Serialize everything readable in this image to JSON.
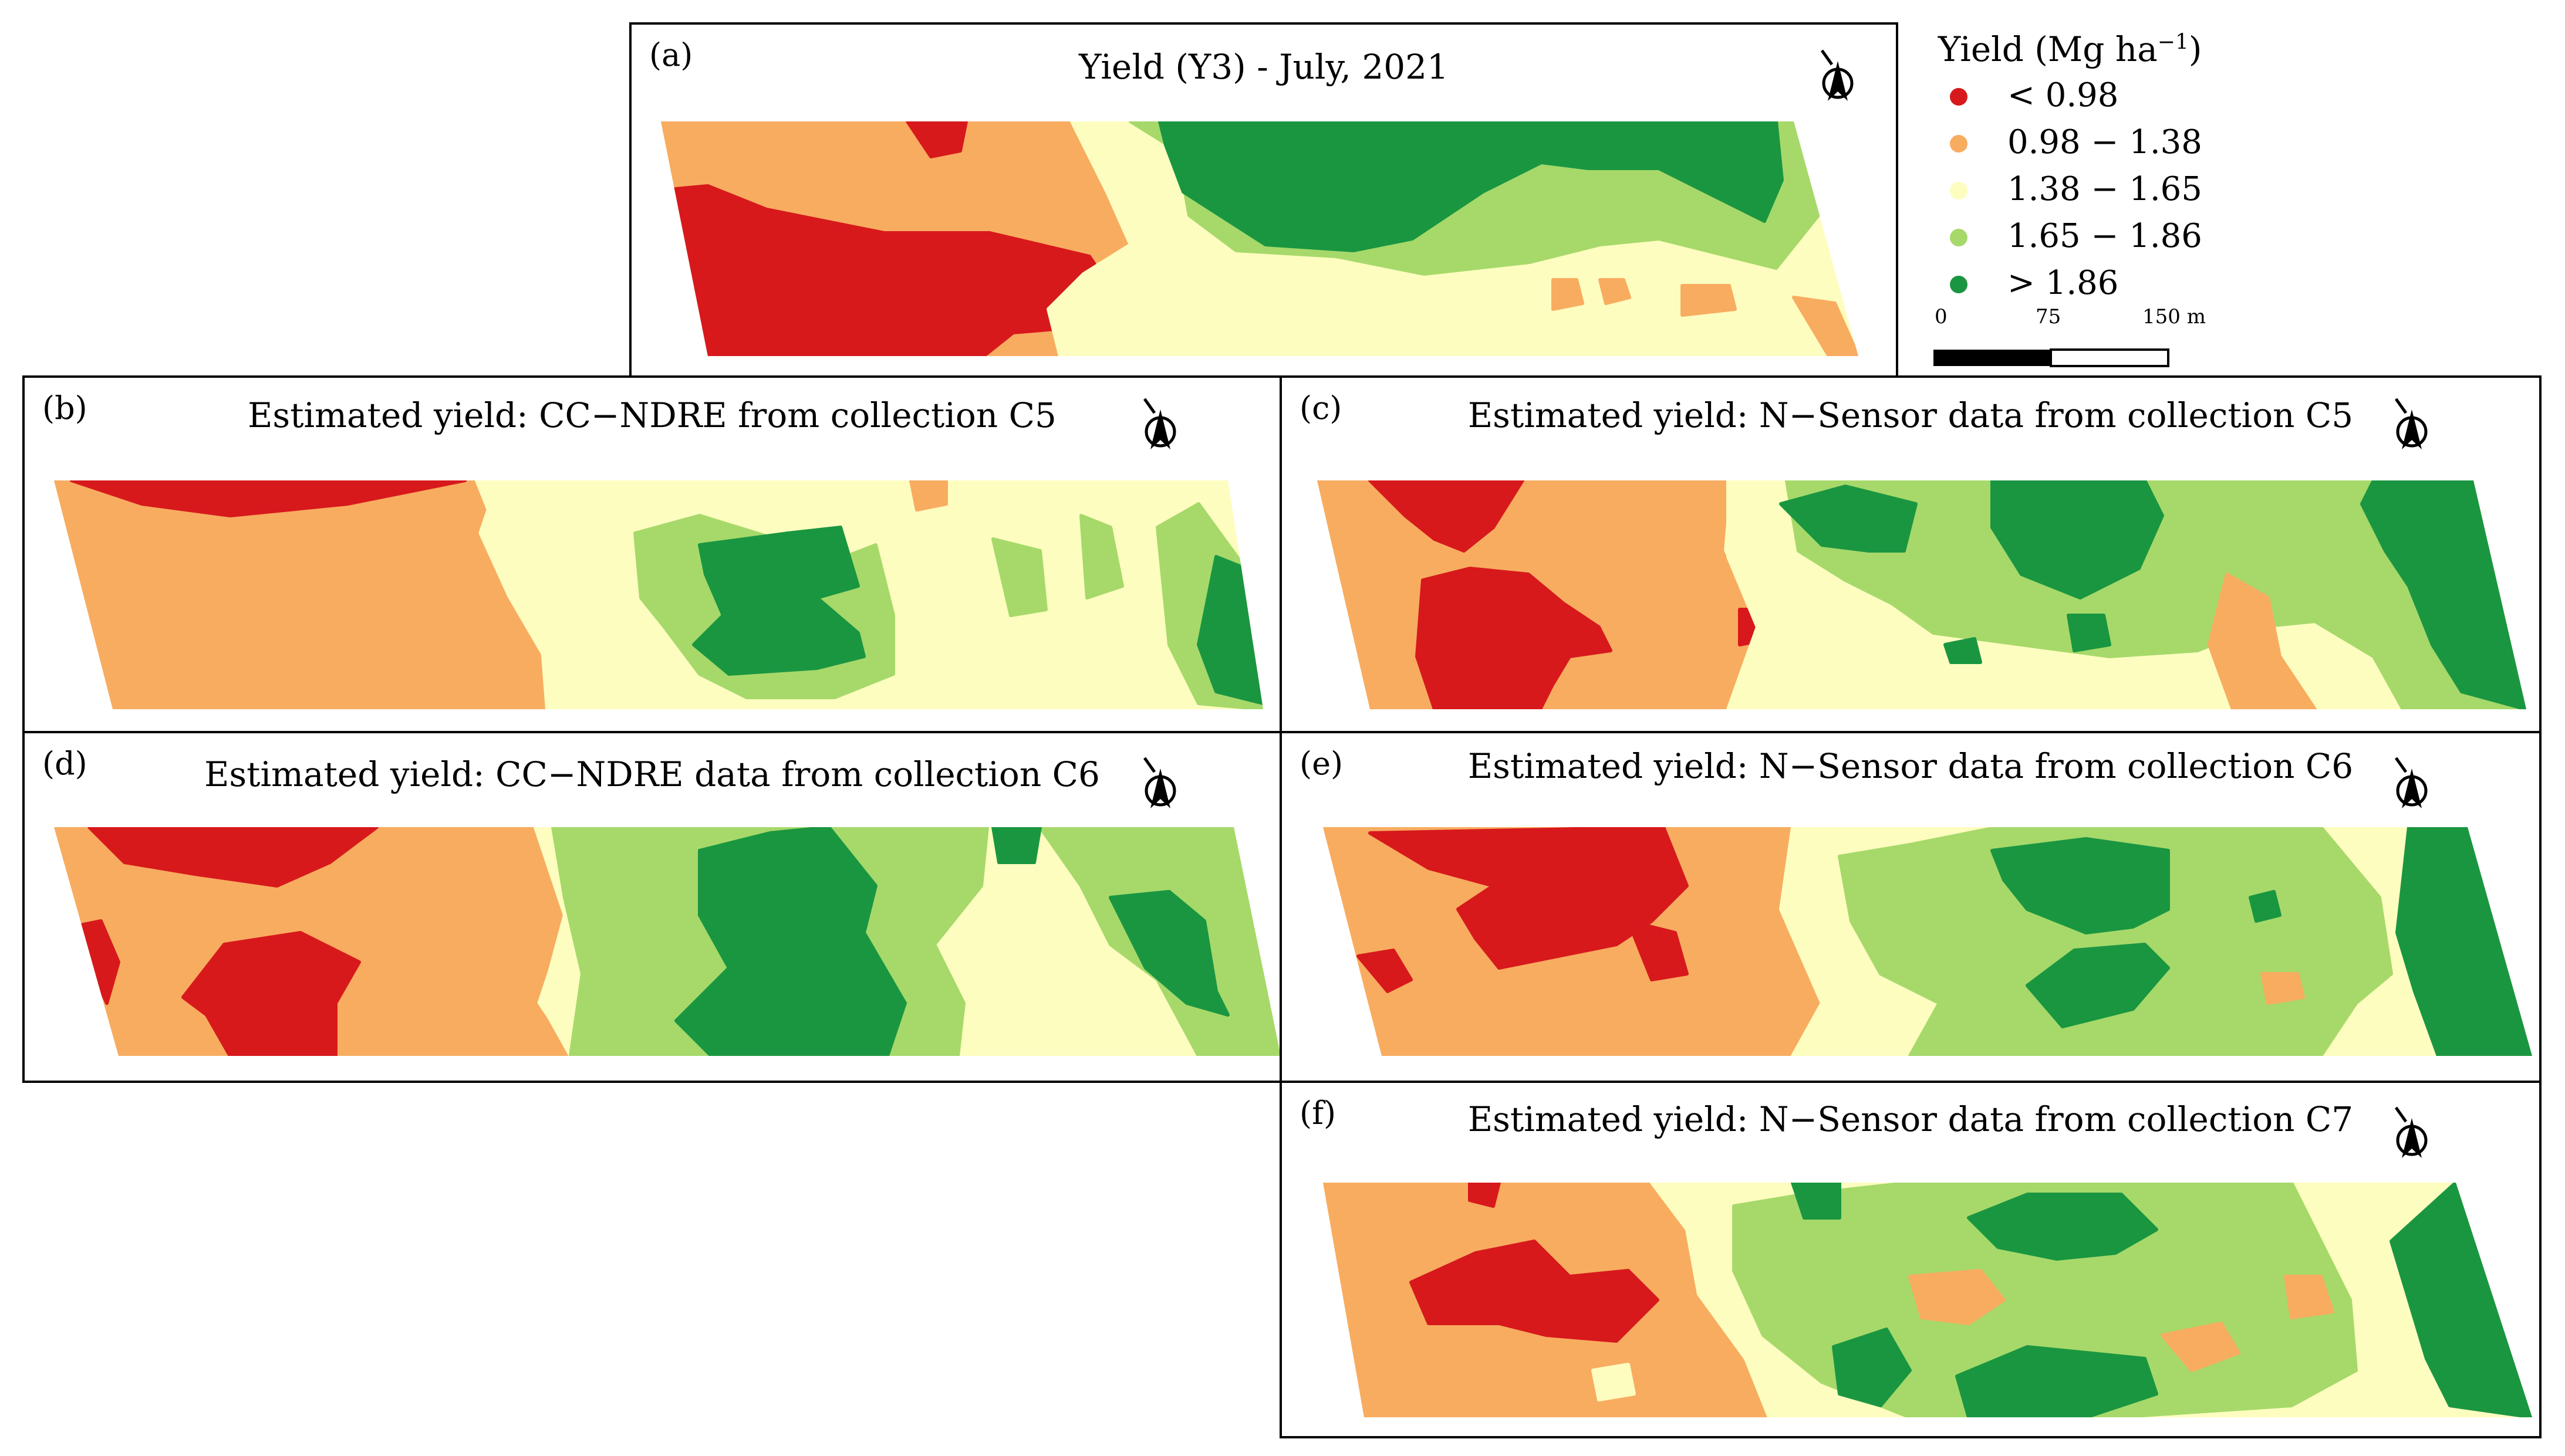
{
  "legend": {
    "title_prefix": "Yield (Mg ha",
    "title_exp": "−1",
    "title_suffix": ")",
    "classes": [
      {
        "label": "< 0.98",
        "color": "#d7191c"
      },
      {
        "label": "0.98 − 1.38",
        "color": "#f8ac60"
      },
      {
        "label": "1.38 − 1.65",
        "color": "#fdfdbf"
      },
      {
        "label": "1.65 − 1.86",
        "color": "#a6d96a"
      },
      {
        "label": "> 1.86",
        "color": "#1a9641"
      }
    ]
  },
  "scale_bar": {
    "tick_0": "0",
    "tick_1": "75",
    "tick_2": "150 m"
  },
  "north_arrow": {
    "letter": "N"
  },
  "panels": [
    {
      "id": "a",
      "label": "(a)",
      "title": "Yield (Y3) - July, 2021"
    },
    {
      "id": "b",
      "label": "(b)",
      "title": "Estimated yield: CC−NDRE from collection C5"
    },
    {
      "id": "c",
      "label": "(c)",
      "title": "Estimated yield: N−Sensor data from collection C5"
    },
    {
      "id": "d",
      "label": "(d)",
      "title": "Estimated yield: CC−NDRE data from collection C6"
    },
    {
      "id": "e",
      "label": "(e)",
      "title": "Estimated yield: N−Sensor data from collection C6"
    },
    {
      "id": "f",
      "label": "(f)",
      "title": "Estimated yield: N−Sensor data from collection C7"
    }
  ]
}
